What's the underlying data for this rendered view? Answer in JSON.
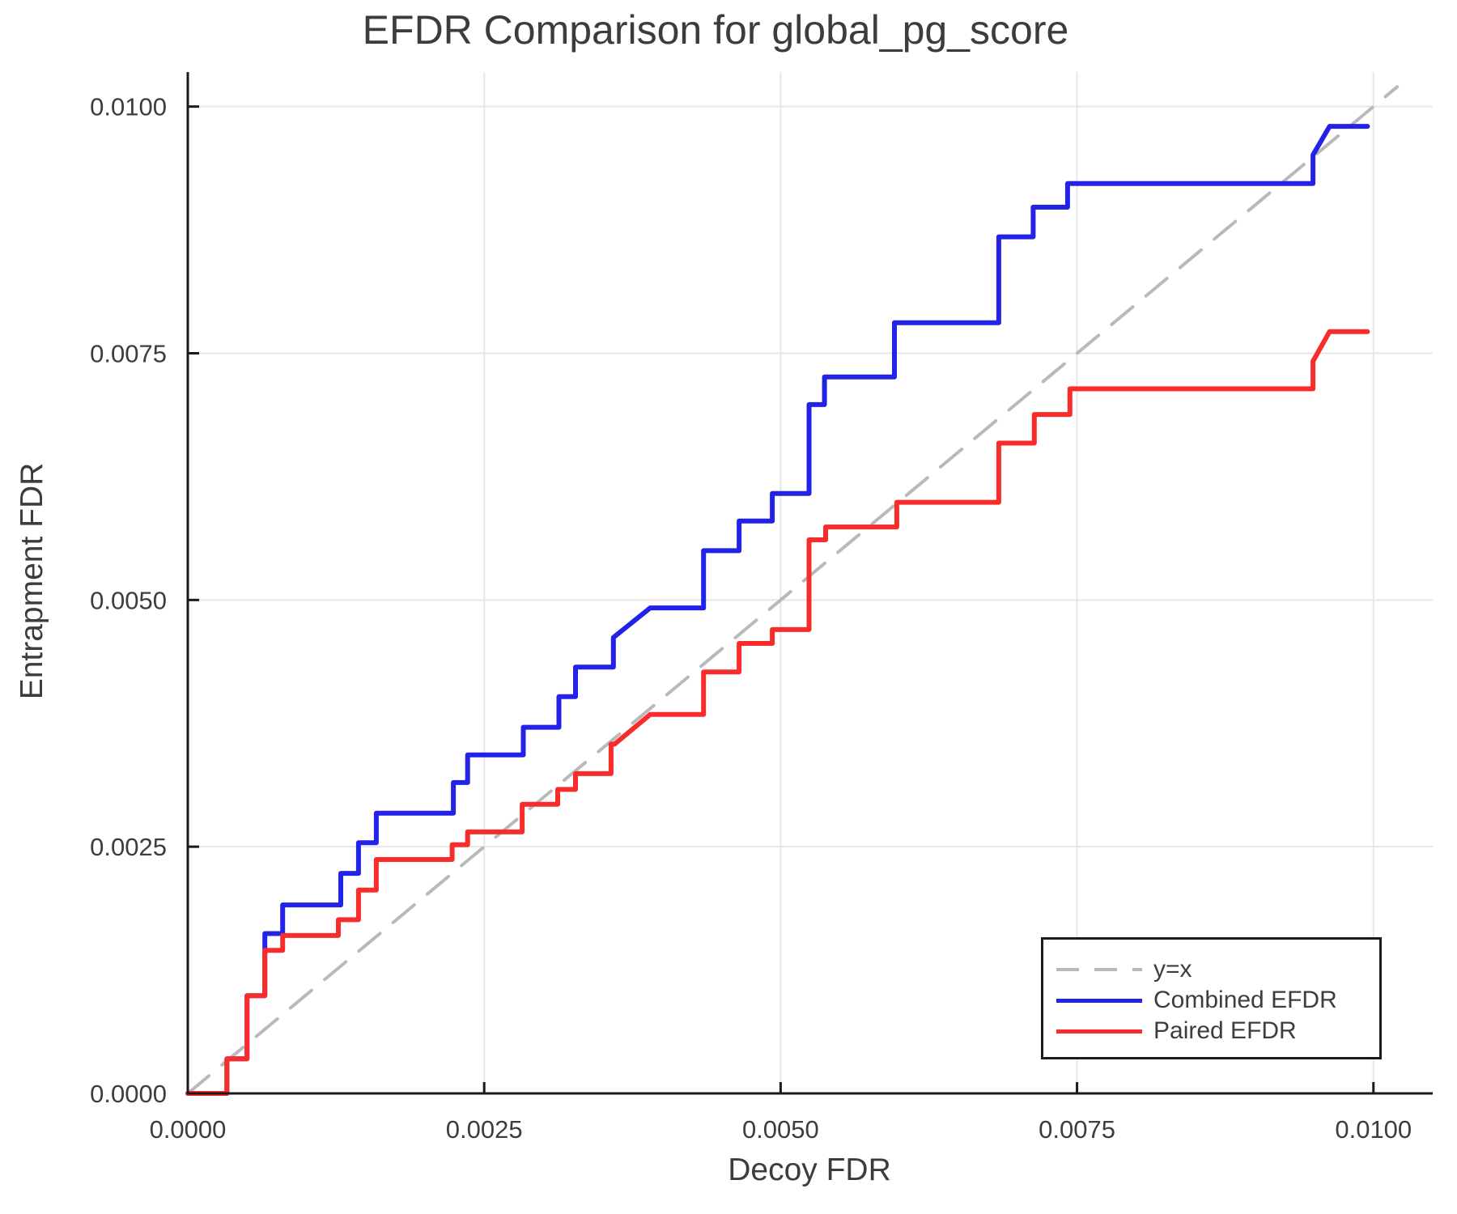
{
  "chart_data": {
    "type": "line",
    "title": "EFDR Comparison for global_pg_score",
    "xlabel": "Decoy FDR",
    "ylabel": "Entrapment FDR",
    "xlim": [
      0,
      0.0105
    ],
    "ylim": [
      0,
      0.01035
    ],
    "grid": true,
    "xticks": {
      "values": [
        0,
        0.0025,
        0.005,
        0.0075,
        0.01
      ],
      "labels": [
        "0.0000",
        "0.0025",
        "0.0050",
        "0.0075",
        "0.0100"
      ]
    },
    "yticks": {
      "values": [
        0,
        0.0025,
        0.005,
        0.0075,
        0.01
      ],
      "labels": [
        "0.0000",
        "0.0025",
        "0.0050",
        "0.0075",
        "0.0100"
      ]
    },
    "colors": {
      "text": "#3d3d3d",
      "grid": "#e7e7e7",
      "spine": "#1a1a1a",
      "reference": "#b9b9b9",
      "combined": "#2323e8",
      "paired": "#f92c2c"
    },
    "legend": {
      "position": "lower right",
      "entries": [
        {
          "label": "y=x",
          "color": "#b9b9b9",
          "style": "dashed"
        },
        {
          "label": "Combined EFDR",
          "color": "#2323e8",
          "style": "solid"
        },
        {
          "label": "Paired EFDR",
          "color": "#f92c2c",
          "style": "solid"
        }
      ]
    },
    "series": [
      {
        "name": "y=x",
        "role": "reference",
        "color": "#b9b9b9",
        "dashed": true,
        "points": [
          [
            0,
            0
          ],
          [
            0.0102,
            0.0102
          ]
        ]
      },
      {
        "name": "Combined EFDR",
        "role": "data",
        "color": "#2323e8",
        "dashed": false,
        "points": [
          [
            0,
            0
          ],
          [
            0.00033,
            0
          ],
          [
            0.00033,
            0.00035
          ],
          [
            0.0005,
            0.00035
          ],
          [
            0.0005,
            0.00099
          ],
          [
            0.00065,
            0.00099
          ],
          [
            0.00065,
            0.00162
          ],
          [
            0.0008,
            0.00162
          ],
          [
            0.0008,
            0.00191
          ],
          [
            0.00129,
            0.00191
          ],
          [
            0.00129,
            0.00223
          ],
          [
            0.00144,
            0.00223
          ],
          [
            0.00144,
            0.00254
          ],
          [
            0.00159,
            0.00254
          ],
          [
            0.00159,
            0.00284
          ],
          [
            0.00224,
            0.00284
          ],
          [
            0.00224,
            0.00315
          ],
          [
            0.00236,
            0.00315
          ],
          [
            0.00236,
            0.00343
          ],
          [
            0.00283,
            0.00343
          ],
          [
            0.00283,
            0.00371
          ],
          [
            0.00313,
            0.00371
          ],
          [
            0.00313,
            0.00402
          ],
          [
            0.00327,
            0.00402
          ],
          [
            0.00327,
            0.00432
          ],
          [
            0.00359,
            0.00432
          ],
          [
            0.00359,
            0.00462
          ],
          [
            0.0039,
            0.00492
          ],
          [
            0.00435,
            0.00492
          ],
          [
            0.00435,
            0.0055
          ],
          [
            0.00465,
            0.0055
          ],
          [
            0.00465,
            0.0058
          ],
          [
            0.00493,
            0.0058
          ],
          [
            0.00493,
            0.00608
          ],
          [
            0.00524,
            0.00608
          ],
          [
            0.00524,
            0.00698
          ],
          [
            0.00537,
            0.00698
          ],
          [
            0.00537,
            0.00726
          ],
          [
            0.00596,
            0.00726
          ],
          [
            0.00596,
            0.00781
          ],
          [
            0.00684,
            0.00781
          ],
          [
            0.00684,
            0.00868
          ],
          [
            0.00713,
            0.00868
          ],
          [
            0.00713,
            0.00898
          ],
          [
            0.00742,
            0.00898
          ],
          [
            0.00742,
            0.00922
          ],
          [
            0.00949,
            0.00922
          ],
          [
            0.00949,
            0.00951
          ],
          [
            0.00963,
            0.0098
          ],
          [
            0.00995,
            0.0098
          ]
        ]
      },
      {
        "name": "Paired EFDR",
        "role": "data",
        "color": "#f92c2c",
        "dashed": false,
        "points": [
          [
            0,
            0
          ],
          [
            0.00033,
            0
          ],
          [
            0.00033,
            0.00035
          ],
          [
            0.0005,
            0.00035
          ],
          [
            0.0005,
            0.00099
          ],
          [
            0.00065,
            0.00099
          ],
          [
            0.00065,
            0.00145
          ],
          [
            0.0008,
            0.00145
          ],
          [
            0.0008,
            0.0016
          ],
          [
            0.00127,
            0.0016
          ],
          [
            0.00127,
            0.00176
          ],
          [
            0.00144,
            0.00176
          ],
          [
            0.00144,
            0.00206
          ],
          [
            0.00159,
            0.00206
          ],
          [
            0.00159,
            0.00237
          ],
          [
            0.00223,
            0.00237
          ],
          [
            0.00223,
            0.00252
          ],
          [
            0.00236,
            0.00252
          ],
          [
            0.00236,
            0.00265
          ],
          [
            0.00282,
            0.00265
          ],
          [
            0.00282,
            0.00293
          ],
          [
            0.00312,
            0.00293
          ],
          [
            0.00312,
            0.00308
          ],
          [
            0.00327,
            0.00308
          ],
          [
            0.00327,
            0.00324
          ],
          [
            0.00357,
            0.00324
          ],
          [
            0.00357,
            0.00354
          ],
          [
            0.0036,
            0.00354
          ],
          [
            0.0039,
            0.00384
          ],
          [
            0.00435,
            0.00384
          ],
          [
            0.00435,
            0.00427
          ],
          [
            0.00465,
            0.00427
          ],
          [
            0.00465,
            0.00456
          ],
          [
            0.00493,
            0.00456
          ],
          [
            0.00493,
            0.0047
          ],
          [
            0.00524,
            0.0047
          ],
          [
            0.00524,
            0.00561
          ],
          [
            0.00538,
            0.00561
          ],
          [
            0.00538,
            0.00574
          ],
          [
            0.00598,
            0.00574
          ],
          [
            0.00598,
            0.00599
          ],
          [
            0.00684,
            0.00599
          ],
          [
            0.00684,
            0.00659
          ],
          [
            0.00714,
            0.00659
          ],
          [
            0.00714,
            0.00688
          ],
          [
            0.00744,
            0.00688
          ],
          [
            0.00744,
            0.00714
          ],
          [
            0.00949,
            0.00714
          ],
          [
            0.00949,
            0.00742
          ],
          [
            0.00963,
            0.00772
          ],
          [
            0.00995,
            0.00772
          ]
        ]
      }
    ]
  }
}
